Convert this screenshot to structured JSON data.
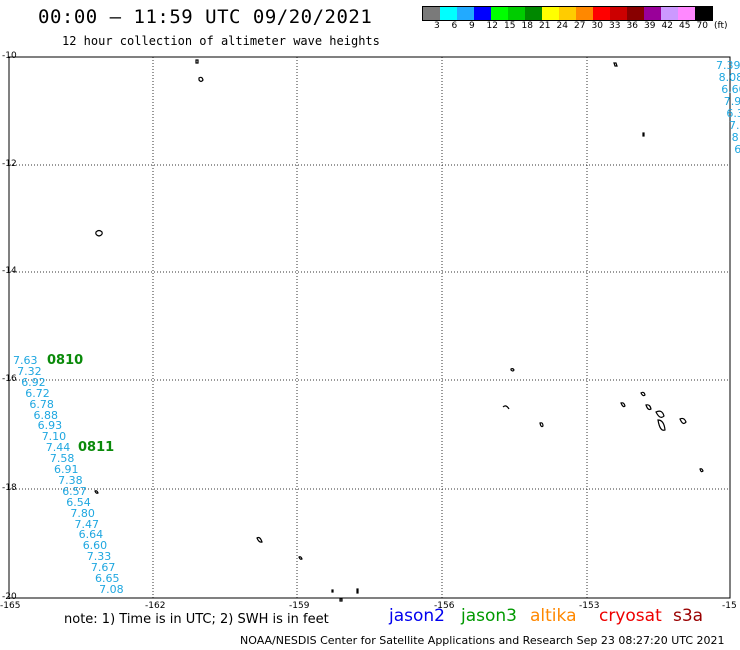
{
  "header": {
    "title": "00:00 – 11:59 UTC 09/20/2021",
    "subtitle": "12 hour collection of altimeter wave heights"
  },
  "legend": {
    "colors": [
      "#7a7a7a",
      "#00ffff",
      "#22aaff",
      "#0000ff",
      "#00ff00",
      "#00cc00",
      "#008800",
      "#ffff00",
      "#ffcc00",
      "#ff8800",
      "#ff0000",
      "#cc0000",
      "#880000",
      "#990099",
      "#cc99ff",
      "#ff88ff",
      "#000000"
    ],
    "labels": [
      "3",
      "6",
      "9",
      "12",
      "15",
      "18",
      "21",
      "24",
      "27",
      "30",
      "33",
      "36",
      "39",
      "42",
      "45",
      "70",
      "(ft)"
    ]
  },
  "axes": {
    "lat_labels": [
      "-10",
      "-12",
      "-14",
      "-16",
      "-18",
      "-20"
    ],
    "lon_labels": [
      "-165",
      "-162",
      "-159",
      "-156",
      "-153",
      "-15"
    ]
  },
  "tracks": {
    "left_values": [
      "7.63",
      "7.32",
      "6.92",
      "6.72",
      "6.78",
      "6.88",
      "6.93",
      "7.10",
      "7.44",
      "7.58",
      "6.91",
      "7.38",
      "6.57",
      "6.54",
      "7.80",
      "7.47",
      "6.64",
      "6.60",
      "7.33",
      "7.67",
      "6.65",
      "7.08"
    ],
    "left_pass_labels": [
      "0810",
      "0811"
    ],
    "right_values": [
      "7.39",
      "8.08",
      "6.60",
      "7.9",
      "6.3",
      "7.",
      "8",
      "6"
    ]
  },
  "note": "note: 1) Time is in UTC; 2) SWH is in feet",
  "satellites": [
    {
      "name": "jason2",
      "color": "#0000ee"
    },
    {
      "name": "jason3",
      "color": "#009900"
    },
    {
      "name": "altika",
      "color": "#ff8800"
    },
    {
      "name": "cryosat",
      "color": "#ee0000"
    },
    {
      "name": "s3a",
      "color": "#990000"
    }
  ],
  "footer": "NOAA/NESDIS Center for Satellite Applications and Research   Sep 23 08:27:20 UTC 2021"
}
